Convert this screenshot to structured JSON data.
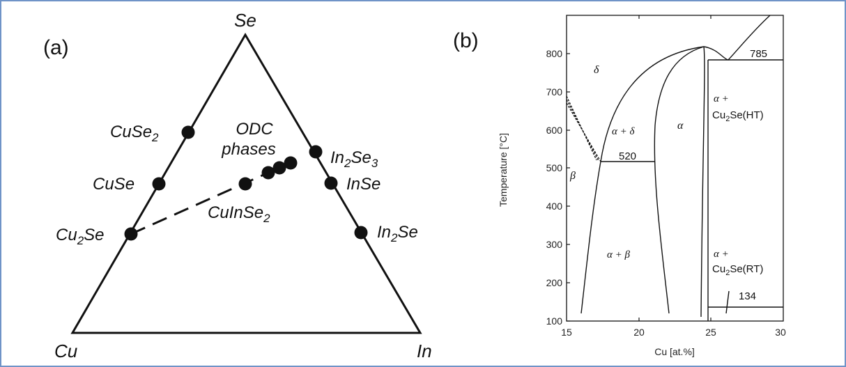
{
  "panel_a": {
    "tag": "(a)",
    "vertices": {
      "top": "Se",
      "left": "Cu",
      "right": "In"
    },
    "labels": {
      "cuse2": {
        "base": "CuSe",
        "sub": "2"
      },
      "cuse": {
        "base": "CuSe"
      },
      "cu2se": {
        "base": "Cu",
        "sub": "2",
        "rest": "Se"
      },
      "odc_1": "ODC",
      "odc_2": "phases",
      "in2se3": {
        "base": "In",
        "sub": "2",
        "rest": "Se",
        "sub2": "3"
      },
      "inse": {
        "base": "InSe"
      },
      "in2se": {
        "base": "In",
        "sub": "2",
        "rest": "Se"
      },
      "cuinse2": {
        "base": "CuInSe",
        "sub": "2"
      }
    }
  },
  "panel_b": {
    "tag": "(b)",
    "ylabel": "Temperature [°C]",
    "xlabel": "Cu [at.%]",
    "xticks": [
      "15",
      "20",
      "25",
      "30"
    ],
    "yticks": [
      "100",
      "200",
      "300",
      "400",
      "500",
      "600",
      "700",
      "800"
    ],
    "xlim": [
      15,
      30
    ],
    "ylim": [
      100,
      900
    ],
    "phases": {
      "delta": "δ",
      "alpha_delta": "α + δ",
      "alpha": "α",
      "beta": "β",
      "alpha_beta": "α + β",
      "ht_1": "α +",
      "ht_2_base": "Cu",
      "ht_2_sub": "2",
      "ht_2_rest": "Se(HT)",
      "rt_1": "α +",
      "rt_2_base": "Cu",
      "rt_2_sub": "2",
      "rt_2_rest": "Se(RT)"
    },
    "isotherms": {
      "t520": "520",
      "t785": "785",
      "t134": "134"
    }
  },
  "colors": {
    "border": "#6f93c7",
    "ink": "#111111"
  }
}
